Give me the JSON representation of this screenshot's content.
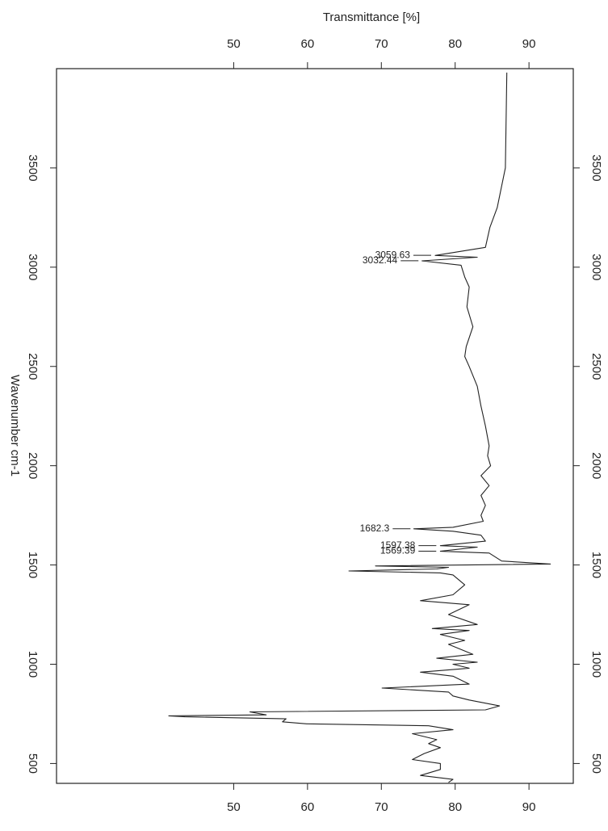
{
  "chart_data": {
    "type": "line",
    "orientation": "vertical",
    "y_label": "Transmittance [%]",
    "x_label": "Wavenumber cm-1",
    "xlim": [
      4000,
      400
    ],
    "xticks": [
      3500,
      3000,
      2500,
      2000,
      1500,
      1000,
      500
    ],
    "ylim": [
      26,
      96
    ],
    "yticks": [
      50,
      60,
      70,
      80,
      90
    ],
    "color": "#222222",
    "x": [
      3980,
      3500,
      3300,
      3200,
      3100,
      3059,
      3050,
      3032,
      3010,
      2950,
      2900,
      2800,
      2700,
      2600,
      2550,
      2500,
      2400,
      2300,
      2200,
      2100,
      2050,
      2000,
      1950,
      1900,
      1850,
      1800,
      1750,
      1720,
      1690,
      1682,
      1670,
      1650,
      1620,
      1597,
      1590,
      1569,
      1560,
      1520,
      1505,
      1495,
      1488,
      1480,
      1470,
      1460,
      1450,
      1400,
      1350,
      1320,
      1300,
      1250,
      1200,
      1180,
      1170,
      1150,
      1120,
      1100,
      1050,
      1030,
      1010,
      1000,
      980,
      960,
      940,
      900,
      880,
      860,
      840,
      820,
      790,
      770,
      760,
      745,
      740,
      735,
      725,
      710,
      700,
      690,
      670,
      650,
      620,
      600,
      580,
      550,
      520,
      500,
      470,
      440,
      420,
      405
    ],
    "values": [
      87.0,
      86.8,
      85.7,
      84.7,
      84.1,
      77.3,
      83.0,
      75.5,
      80.8,
      81.3,
      81.9,
      81.6,
      82.4,
      81.5,
      81.3,
      81.9,
      83.0,
      83.5,
      84.1,
      84.6,
      84.4,
      84.8,
      83.5,
      84.6,
      83.5,
      84.1,
      83.5,
      83.8,
      79.7,
      74.4,
      79.7,
      83.5,
      84.1,
      78.0,
      83.0,
      78.0,
      84.6,
      86.3,
      92.9,
      69.2,
      79.1,
      77.5,
      65.6,
      78.0,
      79.7,
      81.3,
      79.7,
      75.3,
      81.9,
      79.1,
      83.0,
      76.9,
      81.9,
      78.0,
      81.3,
      79.1,
      82.4,
      77.5,
      83.0,
      79.7,
      81.9,
      75.3,
      79.7,
      81.9,
      70.1,
      79.1,
      79.7,
      81.9,
      86.0,
      84.1,
      52.2,
      54.4,
      41.2,
      43.4,
      57.1,
      56.6,
      59.9,
      76.4,
      79.7,
      74.2,
      77.5,
      76.4,
      78.0,
      75.8,
      74.2,
      78.0,
      78.0,
      75.3,
      79.7,
      79.1
    ],
    "peak_labels": [
      3059.63,
      3032.44,
      1682.3,
      1597.38,
      1569.39
    ]
  }
}
